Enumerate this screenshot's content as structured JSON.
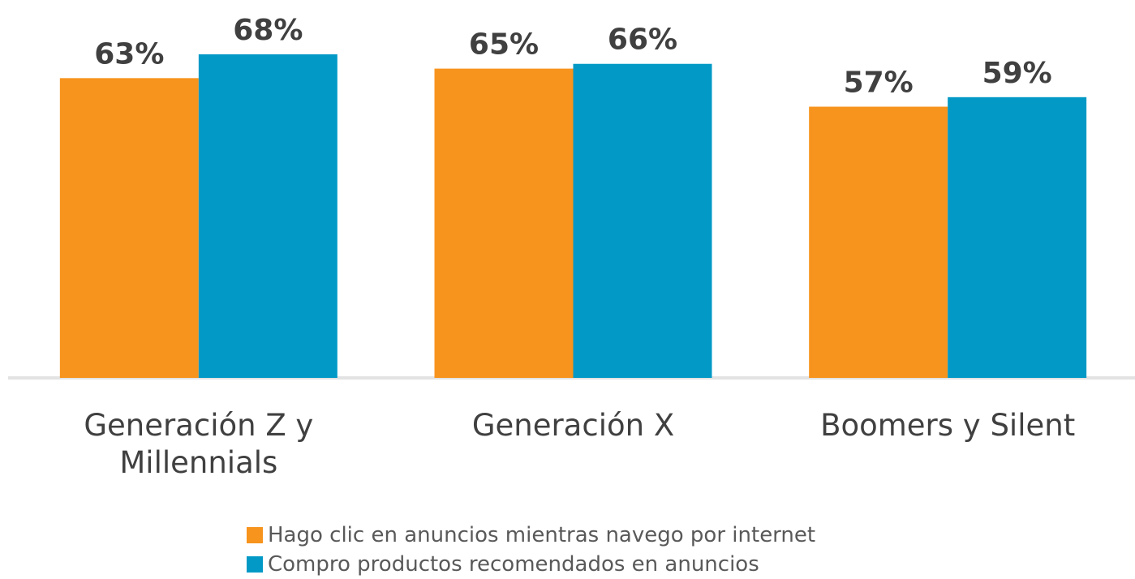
{
  "chart_data": {
    "type": "bar",
    "categories": [
      "Generación Z y Millennials",
      "Generación X",
      "Boomers y Silent"
    ],
    "series": [
      {
        "name": "Hago clic en anuncios mientras navego por internet",
        "color": "#f7941d",
        "values": [
          63,
          65,
          57
        ],
        "value_labels": [
          "63%",
          "65%",
          "57%"
        ]
      },
      {
        "name": "Compro productos recomendados en anuncios",
        "color": "#0399c6",
        "values": [
          68,
          66,
          59
        ],
        "value_labels": [
          "68%",
          "66%",
          "59%"
        ]
      }
    ],
    "legend": "bottom"
  }
}
